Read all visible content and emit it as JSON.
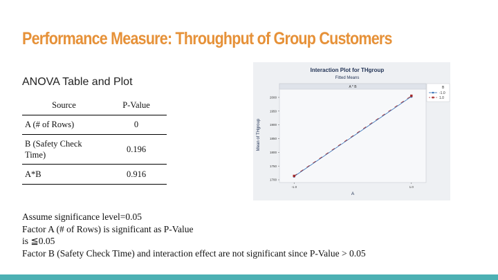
{
  "slide": {
    "title": "Performance Measure: Throughput of Group Customers",
    "subtitle": "ANOVA Table and Plot"
  },
  "anova_table": {
    "headers": [
      "Source",
      "P-Value"
    ],
    "rows": [
      {
        "source": "A (# of Rows)",
        "p_value": "0"
      },
      {
        "source": "B (Safety Check Time)",
        "p_value": "0.196"
      },
      {
        "source": "A*B",
        "p_value": "0.916"
      }
    ]
  },
  "plot": {
    "title": "Interaction Plot for THgroup",
    "subtitle": "Fitted Means",
    "panel_label": "A * B",
    "x_axis_label": "A",
    "y_axis_label": "Mean of THgroup",
    "x_ticks": [
      "-1.0",
      "1.0"
    ],
    "y_ticks": [
      "1700",
      "1750",
      "1800",
      "1850",
      "1900",
      "1950",
      "2000"
    ],
    "legend_title": "B",
    "legend_entries": [
      "-1.0",
      "1.0"
    ]
  },
  "chart_data": {
    "type": "line",
    "title": "Interaction Plot for THgroup",
    "subtitle": "Fitted Means",
    "xlabel": "A",
    "ylabel": "Mean of THgroup",
    "x": [
      -1.0,
      1.0
    ],
    "xlim": [
      -1.25,
      1.25
    ],
    "ylim": [
      1690,
      2030
    ],
    "series": [
      {
        "name": "-1.0",
        "values": [
          1712,
          2003
        ]
      },
      {
        "name": "1.0",
        "values": [
          1714,
          2006
        ]
      }
    ],
    "legend": "top-right",
    "colors": {
      "-1.0": "#2f6db5",
      "1.0": "#a52a2a"
    }
  },
  "conclusions": [
    "Assume significance level=0.05",
    "Factor A (# of Rows) is significant as P-Value",
    "is ≦0.05",
    "Factor B (Safety Check Time) and interaction effect are not significant since P-Value > 0.05"
  ],
  "colors": {
    "title": "#e69138",
    "accent_bar": "#4cb0b3"
  }
}
